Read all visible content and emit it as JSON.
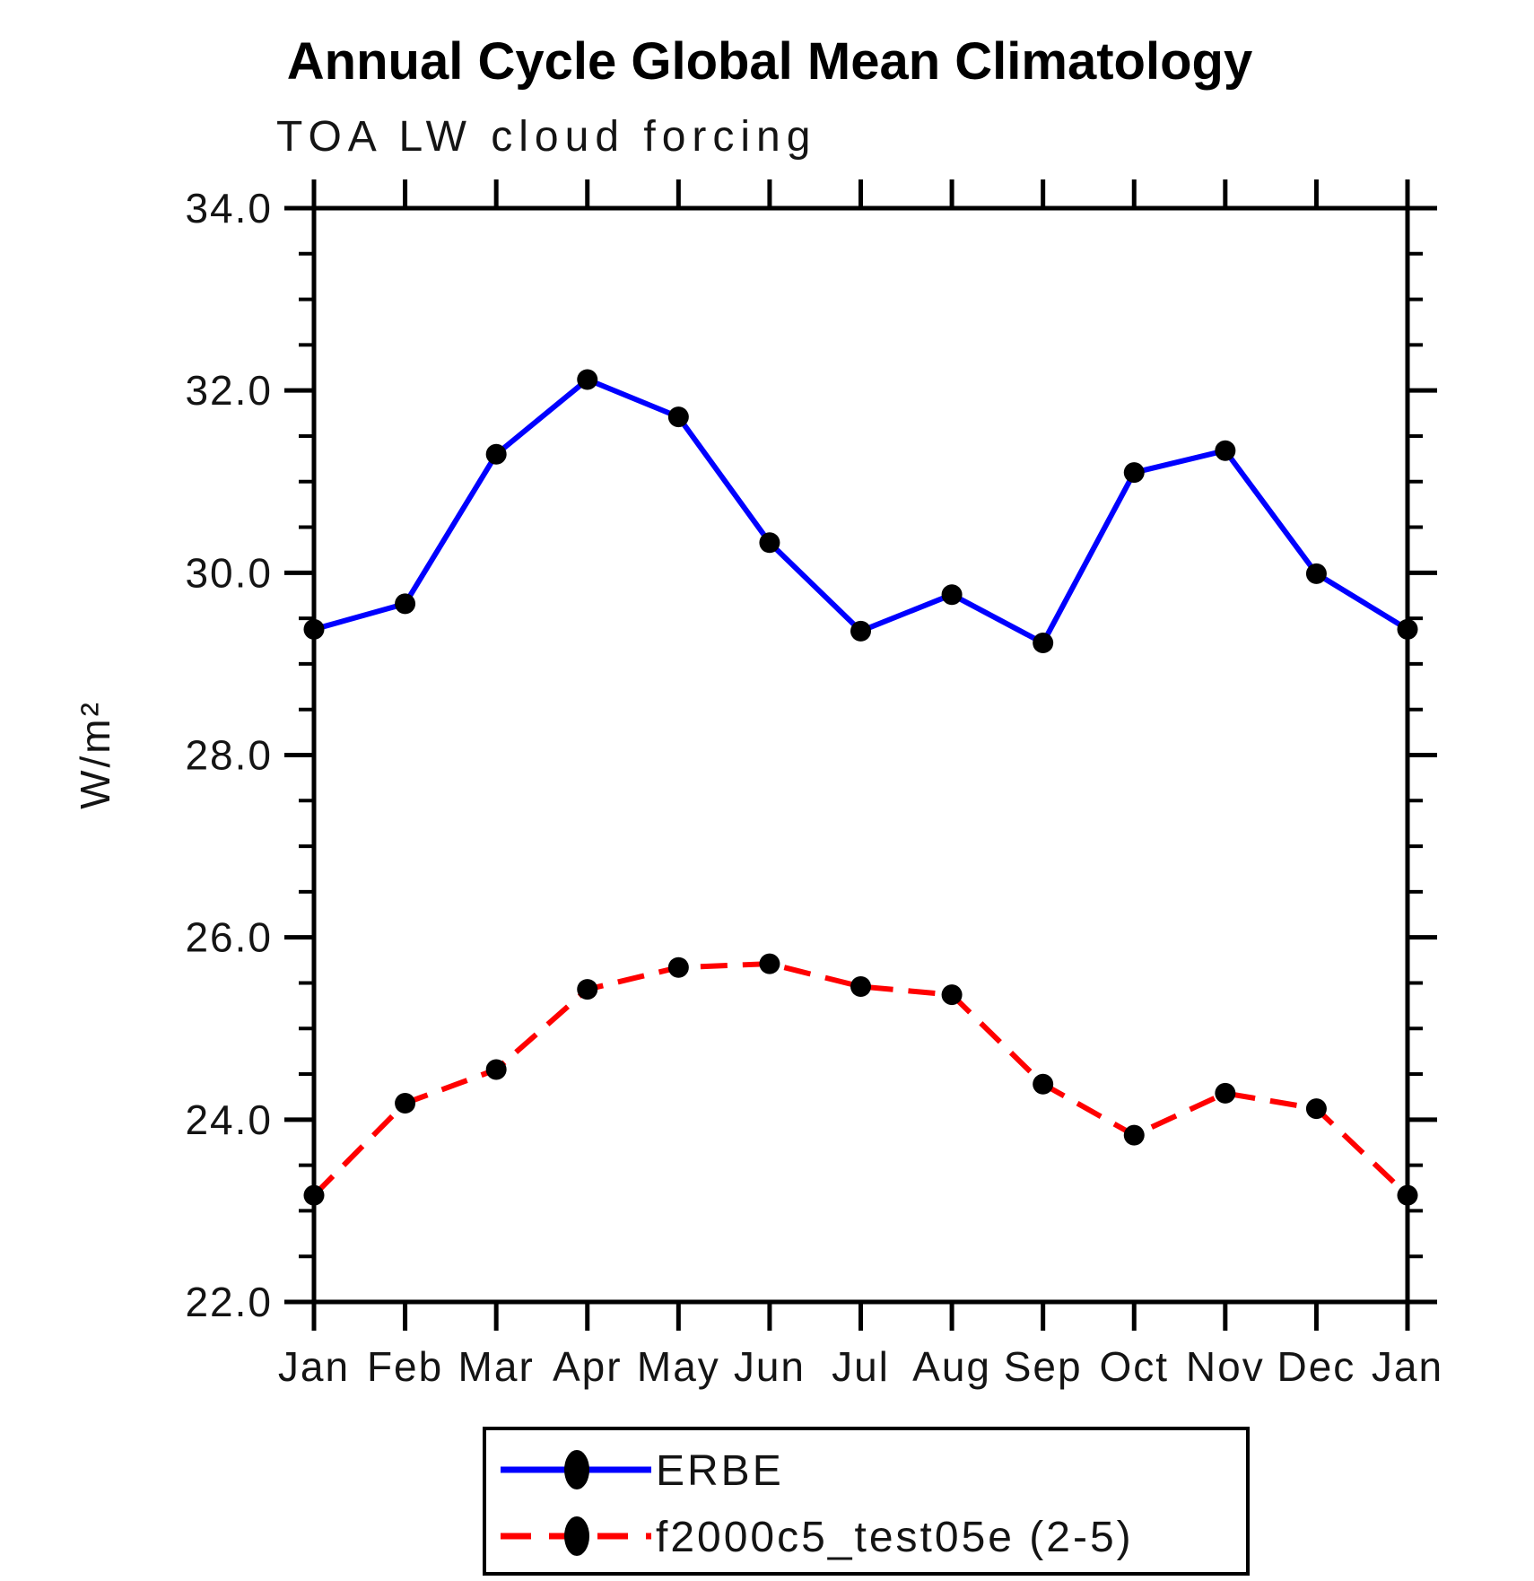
{
  "title": "Annual Cycle Global Mean Climatology",
  "subtitle": "TOA LW cloud forcing",
  "chart_data": {
    "type": "line",
    "x_categories": [
      "Jan",
      "Feb",
      "Mar",
      "Apr",
      "May",
      "Jun",
      "Jul",
      "Aug",
      "Sep",
      "Oct",
      "Nov",
      "Dec",
      "Jan"
    ],
    "xlabel": "",
    "ylabel": "W/m²",
    "ylim": [
      22.0,
      34.0
    ],
    "ytick_major_interval": 2.0,
    "ytick_minor_interval": 0.5,
    "ytick_labels": [
      "22.0",
      "24.0",
      "26.0",
      "28.0",
      "30.0",
      "32.0",
      "34.0"
    ],
    "grid": false,
    "legend_position": "bottom",
    "marker": "filled-circle",
    "marker_color": "#000000",
    "series": [
      {
        "name": "ERBE",
        "color": "#0000ff",
        "style": "solid",
        "values": [
          29.38,
          29.66,
          31.3,
          32.12,
          31.71,
          30.33,
          29.36,
          29.76,
          29.23,
          31.1,
          31.34,
          29.99,
          29.38
        ]
      },
      {
        "name": "f2000c5_test05e (2-5)",
        "color": "#ff0000",
        "style": "dashed",
        "values": [
          23.17,
          24.18,
          24.55,
          25.43,
          25.67,
          25.71,
          25.46,
          25.37,
          24.39,
          23.83,
          24.29,
          24.12,
          23.17
        ]
      }
    ]
  },
  "colors": {
    "axis": "#000000",
    "background": "#ffffff",
    "erbe_line": "#0000ff",
    "model_line": "#ff0000"
  }
}
